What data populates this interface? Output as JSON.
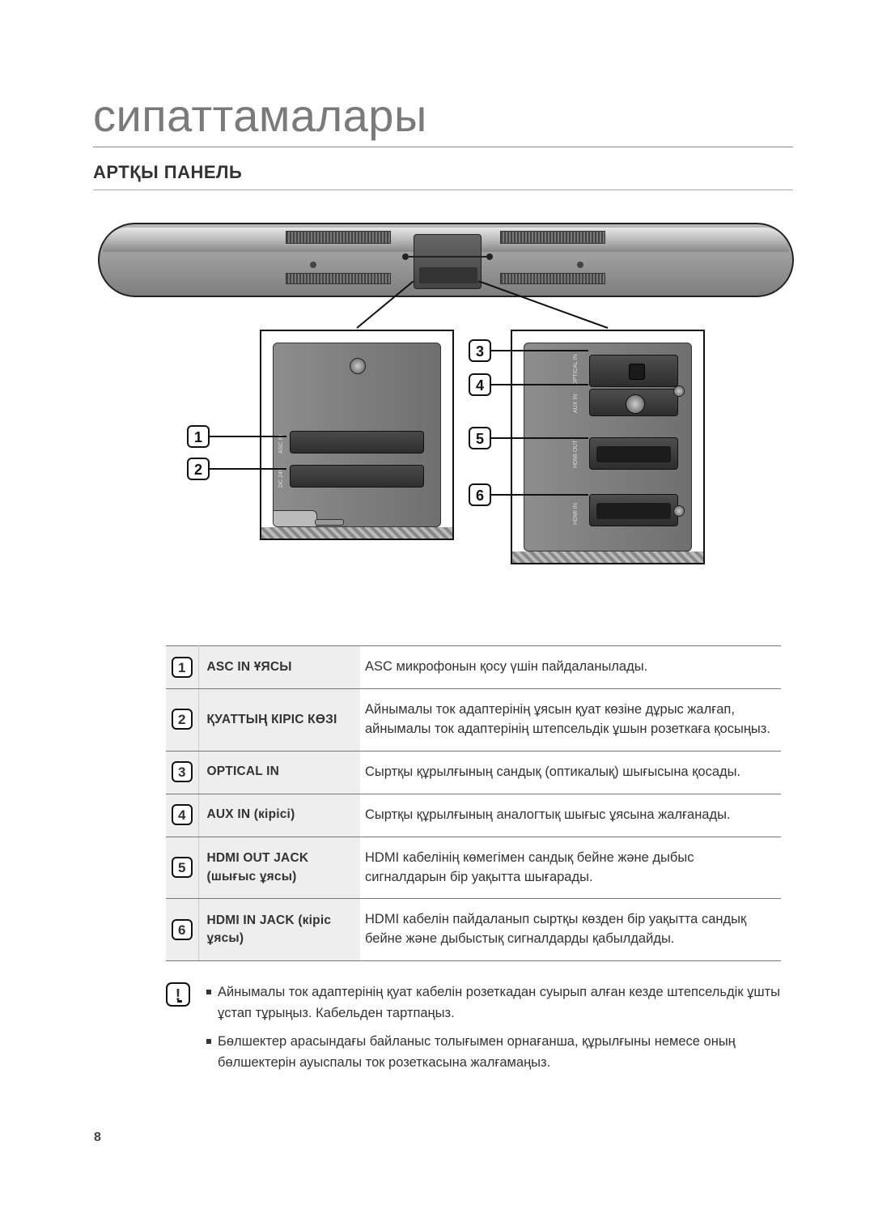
{
  "page_number": "8",
  "heading": "сипаттамалары",
  "subheading": "АРТҚЫ ПАНЕЛЬ",
  "diagram": {
    "left_inset_labels": {
      "asc": "ASC IN",
      "dc": "DC 24V"
    },
    "right_inset_labels": {
      "optical": "OPTICAL IN",
      "aux": "AUX IN",
      "hdmi_out": "HDMI OUT",
      "hdmi_in": "HDMI IN"
    },
    "callouts": {
      "c1": "1",
      "c2": "2",
      "c3": "3",
      "c4": "4",
      "c5": "5",
      "c6": "6"
    }
  },
  "table_rows": [
    {
      "num": "1",
      "name": "ASC IN ҰЯСЫ",
      "desc": "ASC микрофонын қосу үшін пайдаланылады."
    },
    {
      "num": "2",
      "name": "ҚУАТТЫҢ КІРІС КӨЗІ",
      "desc": "Айнымалы ток адаптерінің ұясын қуат көзіне дұрыс жалғап, айнымалы ток адаптерінің штепсельдік ұшын розеткаға қосыңыз."
    },
    {
      "num": "3",
      "name": "OPTICAL IN",
      "desc": "Сыртқы құрылғының сандық (оптикалық) шығысына қосады."
    },
    {
      "num": "4",
      "name": "AUX IN (кірісі)",
      "desc": "Сыртқы құрылғының аналогтық шығыс ұясына жалғанады."
    },
    {
      "num": "5",
      "name": "HDMI OUT JACK (шығыс ұясы)",
      "desc": "HDMI кабелінің көмегімен сандық бейне және дыбыс сигналдарын бір уақытта шығарады."
    },
    {
      "num": "6",
      "name": "HDMI IN JACK (кіріс ұясы)",
      "desc": "HDMI кабелін пайдаланып сыртқы көзден бір уақытта сандық бейне және дыбыстық сигналдарды қабылдайды."
    }
  ],
  "notes": [
    "Айнымалы ток адаптерінің қуат кабелін розеткадан суырып алған кезде штепсельдік ұшты ұстап тұрыңыз. Кабельден тартпаңыз.",
    "Бөлшектер арасындағы байланыс толығымен орнағанша, құрылғыны немесе оның бөлшектерін ауыспалы ток розеткасына жалғамаңыз."
  ],
  "note_icon": "!"
}
